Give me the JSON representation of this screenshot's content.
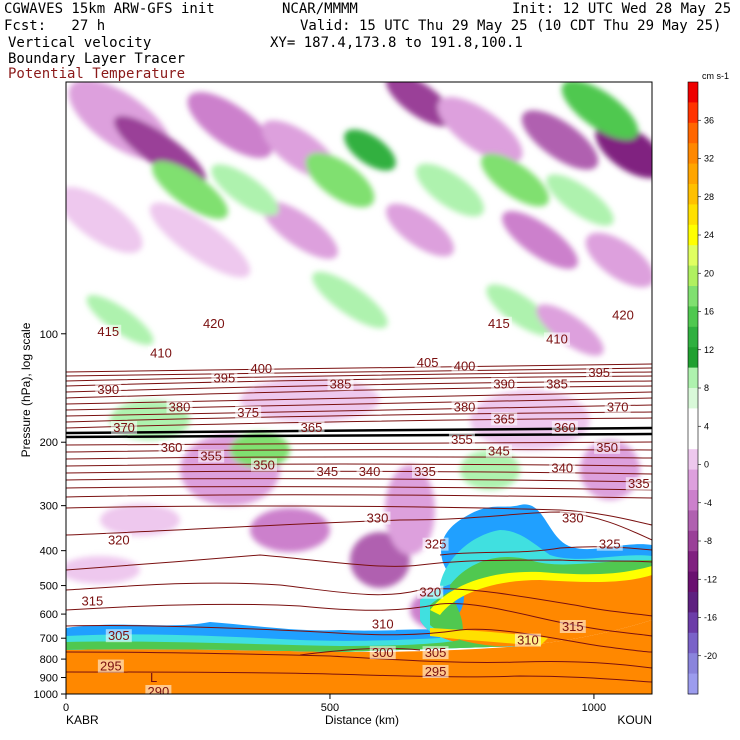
{
  "header": {
    "model": "CGWAVES 15km ARW-GFS init",
    "org": "NCAR/MMMM",
    "init": "Init: 12 UTC Wed 28 May 25",
    "fcst": "Fcst:   27 h",
    "valid": "Valid: 15 UTC Thu 29 May 25 (10 CDT Thu 29 May 25)",
    "field1": "Vertical velocity",
    "field2": "Boundary Layer Tracer",
    "field3": "Potential Temperature",
    "xy": "XY= 187.4,173.8 to 191.8,100.1",
    "field3_color": "#8b1a1a"
  },
  "chart_data": {
    "type": "heatmap",
    "title": "",
    "xlabel": "Distance (km)",
    "ylabel": "Pressure (hPa), log scale",
    "x_ticks": [
      0,
      500,
      1000
    ],
    "xlim": [
      0,
      1110
    ],
    "y_ticks": [
      100,
      200,
      300,
      400,
      500,
      600,
      700,
      800,
      900,
      1000
    ],
    "y_scale": "log",
    "ylim": [
      1000,
      20
    ],
    "left_station": "KABR",
    "right_station": "KOUN",
    "colorbar": {
      "units": "cm s-1",
      "ticks": [
        36,
        32,
        28,
        24,
        20,
        16,
        12,
        8,
        4,
        0,
        -4,
        -8,
        -12,
        -16,
        -20
      ],
      "colors": [
        "#ee0000",
        "#ff3300",
        "#ff6600",
        "#ff8800",
        "#ffa500",
        "#ffc000",
        "#ffe000",
        "#ffff00",
        "#e0ff60",
        "#b0f060",
        "#80e070",
        "#50c850",
        "#30b040",
        "#20a030",
        "#aef2ae",
        "#d9f9d9",
        "#ffffff",
        "#ffffff",
        "#eec8ee",
        "#dda0dd",
        "#cc80cc",
        "#b060b0",
        "#9a4098",
        "#802080",
        "#6a1070",
        "#5e2080",
        "#6c3ca8",
        "#7a62c8",
        "#8a84dc",
        "#9c9cee"
      ]
    },
    "theta_labels": [
      {
        "v": "415",
        "x": 80,
        "p": 100
      },
      {
        "v": "420",
        "x": 280,
        "p": 95
      },
      {
        "v": "410",
        "x": 180,
        "p": 115
      },
      {
        "v": "400",
        "x": 370,
        "p": 127
      },
      {
        "v": "395",
        "x": 300,
        "p": 135
      },
      {
        "v": "385",
        "x": 520,
        "p": 140
      },
      {
        "v": "390",
        "x": 80,
        "p": 145
      },
      {
        "v": "380",
        "x": 215,
        "p": 162
      },
      {
        "v": "375",
        "x": 345,
        "p": 168
      },
      {
        "v": "370",
        "x": 110,
        "p": 185
      },
      {
        "v": "365",
        "x": 465,
        "p": 185
      },
      {
        "v": "360",
        "x": 200,
        "p": 210
      },
      {
        "v": "355",
        "x": 275,
        "p": 222
      },
      {
        "v": "350",
        "x": 375,
        "p": 235
      },
      {
        "v": "345",
        "x": 495,
        "p": 245
      },
      {
        "v": "340",
        "x": 575,
        "p": 245
      },
      {
        "v": "335",
        "x": 680,
        "p": 245
      },
      {
        "v": "330",
        "x": 590,
        "p": 330
      },
      {
        "v": "320",
        "x": 100,
        "p": 380
      },
      {
        "v": "315",
        "x": 50,
        "p": 560
      },
      {
        "v": "310",
        "x": 600,
        "p": 650
      },
      {
        "v": "305",
        "x": 100,
        "p": 700
      },
      {
        "v": "300",
        "x": 600,
        "p": 780
      },
      {
        "v": "305",
        "x": 700,
        "p": 780
      },
      {
        "v": "295",
        "x": 85,
        "p": 850
      },
      {
        "v": "295",
        "x": 700,
        "p": 880
      },
      {
        "v": "290",
        "x": 175,
        "p": 1000
      },
      {
        "v": "415",
        "x": 820,
        "p": 95
      },
      {
        "v": "410",
        "x": 930,
        "p": 105
      },
      {
        "v": "420",
        "x": 1055,
        "p": 90
      },
      {
        "v": "405",
        "x": 685,
        "p": 122
      },
      {
        "v": "400",
        "x": 755,
        "p": 125
      },
      {
        "v": "390",
        "x": 830,
        "p": 140
      },
      {
        "v": "385",
        "x": 930,
        "p": 140
      },
      {
        "v": "395",
        "x": 1010,
        "p": 130
      },
      {
        "v": "380",
        "x": 755,
        "p": 162
      },
      {
        "v": "365",
        "x": 830,
        "p": 175
      },
      {
        "v": "360",
        "x": 945,
        "p": 185
      },
      {
        "v": "370",
        "x": 1045,
        "p": 162
      },
      {
        "v": "355",
        "x": 750,
        "p": 200
      },
      {
        "v": "345",
        "x": 820,
        "p": 215
      },
      {
        "v": "350",
        "x": 1025,
        "p": 210
      },
      {
        "v": "340",
        "x": 940,
        "p": 240
      },
      {
        "v": "335",
        "x": 1085,
        "p": 265
      },
      {
        "v": "330",
        "x": 960,
        "p": 330
      },
      {
        "v": "325",
        "x": 700,
        "p": 390
      },
      {
        "v": "325",
        "x": 1030,
        "p": 390
      },
      {
        "v": "320",
        "x": 690,
        "p": 530
      },
      {
        "v": "315",
        "x": 960,
        "p": 660
      },
      {
        "v": "310",
        "x": 875,
        "p": 720
      }
    ]
  }
}
